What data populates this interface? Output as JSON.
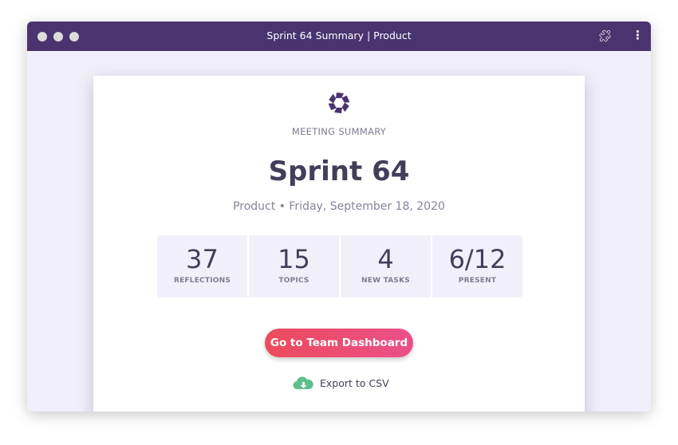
{
  "window": {
    "title": "Sprint 64 Summary | Product",
    "icons": [
      "extensions-puzzle-icon",
      "more-vertical-icon"
    ]
  },
  "summary": {
    "kicker": "MEETING SUMMARY",
    "title": "Sprint 64",
    "subtitle": "Product • Friday, September 18, 2020",
    "stats": [
      {
        "value": "37",
        "label": "REFLECTIONS"
      },
      {
        "value": "15",
        "label": "TOPICS"
      },
      {
        "value": "4",
        "label": "NEW TASKS"
      },
      {
        "value": "6/12",
        "label": "PRESENT"
      }
    ],
    "primary_button": "Go to Team Dashboard",
    "export_label": "Export to CSV"
  },
  "colors": {
    "titlebar": "#493470",
    "accent_start": "#ed4b5b",
    "accent_end": "#eb4f8a",
    "export_icon": "#5fbf8a"
  }
}
